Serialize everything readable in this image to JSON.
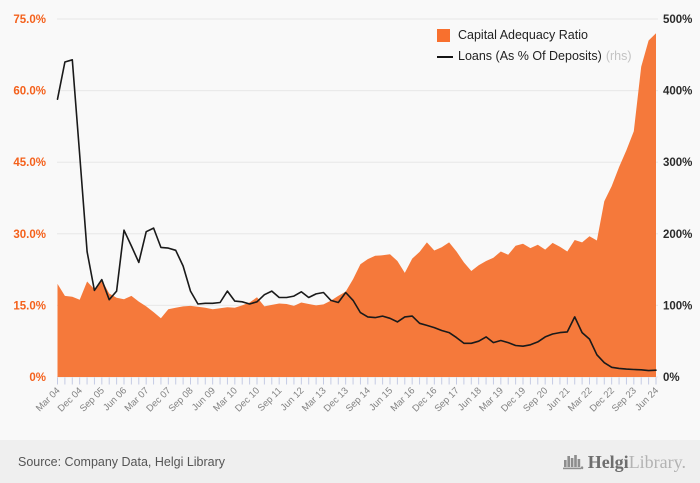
{
  "chart_data": {
    "type": "area+line",
    "n_points": 82,
    "x_labels": [
      "Mar 04",
      "Dec 04",
      "Sep 05",
      "Jun 06",
      "Mar 07",
      "Dec 07",
      "Sep 08",
      "Jun 09",
      "Mar 10",
      "Dec 10",
      "Sep 11",
      "Jun 12",
      "Mar 13",
      "Dec 13",
      "Sep 14",
      "Jun 15",
      "Mar 16",
      "Dec 16",
      "Sep 17",
      "Jun 18",
      "Mar 19",
      "Dec 19",
      "Sep 20",
      "Jun 21",
      "Mar 22",
      "Dec 22",
      "Sep 23",
      "Jun 24"
    ],
    "label_every": 3,
    "left_axis": {
      "ticks": [
        "75.0%",
        "60.0%",
        "45.0%",
        "30.0%",
        "15.0%",
        "0%"
      ],
      "min": 0,
      "max": 75,
      "color": "#f4611c"
    },
    "right_axis": {
      "ticks": [
        "500%",
        "400%",
        "300%",
        "200%",
        "100%",
        "0%"
      ],
      "min": 0,
      "max": 500,
      "color": "#2b2b2b"
    },
    "grid_color": "#e7e7e7",
    "tick_color": "#c5cbe4",
    "x_label_color": "#828282",
    "series": [
      {
        "name": "Capital Adequacy Ratio",
        "axis": "left",
        "type": "area",
        "color": "#f5793b",
        "values": [
          19.5,
          17.0,
          16.8,
          16.2,
          20.0,
          18.4,
          20.3,
          17.5,
          16.6,
          16.3,
          17.0,
          15.8,
          14.8,
          13.6,
          12.3,
          14.2,
          14.5,
          14.8,
          14.9,
          14.7,
          14.5,
          14.2,
          14.4,
          14.6,
          14.5,
          15.0,
          15.6,
          16.7,
          14.8,
          15.1,
          15.4,
          15.3,
          14.9,
          15.6,
          15.3,
          15.0,
          15.2,
          16.0,
          17.0,
          17.9,
          20.5,
          23.6,
          24.7,
          25.4,
          25.5,
          25.7,
          24.3,
          21.8,
          24.8,
          26.2,
          28.2,
          26.5,
          27.2,
          28.2,
          26.3,
          24.0,
          22.2,
          23.4,
          24.3,
          25.0,
          26.3,
          25.6,
          27.5,
          27.9,
          27.0,
          27.7,
          26.7,
          28.1,
          27.3,
          26.3,
          28.7,
          28.2,
          29.5,
          28.6,
          36.8,
          40.0,
          44.0,
          47.5,
          51.5,
          65.0,
          70.5,
          72.0
        ]
      },
      {
        "name": "Loans (As % Of Deposits)",
        "suffix": "(rhs)",
        "axis": "right",
        "type": "line",
        "color": "#1a1a1a",
        "values": [
          388,
          440,
          443,
          310,
          175,
          121,
          136,
          108,
          120,
          205,
          183,
          160,
          203,
          208,
          181,
          180,
          177,
          155,
          120,
          102,
          103,
          103,
          104,
          120,
          106,
          105,
          102,
          105,
          115,
          120,
          111,
          111,
          113,
          119,
          111,
          116,
          118,
          107,
          104,
          118,
          107,
          90,
          84,
          83,
          85,
          82,
          77,
          84,
          85,
          75,
          72,
          69,
          65,
          62,
          55,
          47,
          47,
          50,
          56,
          48,
          51,
          48,
          44,
          43,
          45,
          49,
          56,
          60,
          62,
          63,
          84,
          62,
          53,
          31,
          20,
          13.5,
          12,
          11,
          10.5,
          10,
          9,
          9.5
        ]
      }
    ]
  },
  "legend": {
    "item1": "Capital Adequacy Ratio",
    "item2": "Loans (As % Of Deposits)",
    "item2_suffix": "(rhs)"
  },
  "footer": {
    "source": "Source: Company Data, Helgi Library",
    "logo_text_1": "Helgi",
    "logo_text_2": "Library."
  }
}
